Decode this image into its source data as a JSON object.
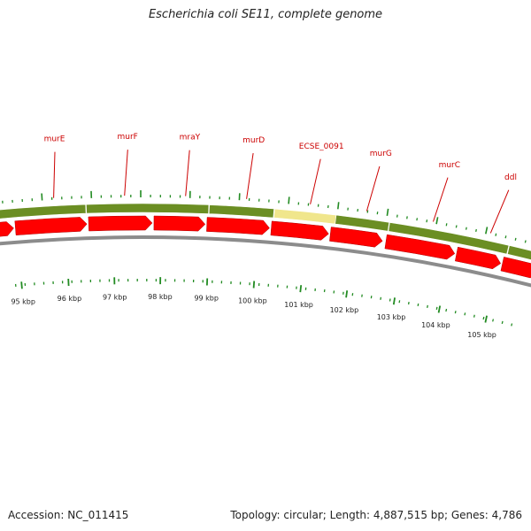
{
  "title": "Escherichia coli SE11, complete genome",
  "accession": "Accession: NC_011415",
  "info": "Topology: circular; Length: 4,887,515 bp; Genes: 4,786",
  "colors": {
    "cds": "#ff0000",
    "gene_band": "#6b8e23",
    "highlight": "#f0e68c",
    "backbone": "#8c8c8c",
    "tick": "#228b22",
    "label": "#cc0000"
  },
  "genes": [
    "murE",
    "murF",
    "mraY",
    "murD",
    "ECSE_0091",
    "murG",
    "murC",
    "ddl"
  ],
  "kbp_labels": [
    "95 kbp",
    "96 kbp",
    "97 kbp",
    "98 kbp",
    "99 kbp",
    "100 kbp",
    "101 kbp",
    "102 kbp",
    "103 kbp",
    "104 kbp",
    "105 kbp"
  ]
}
